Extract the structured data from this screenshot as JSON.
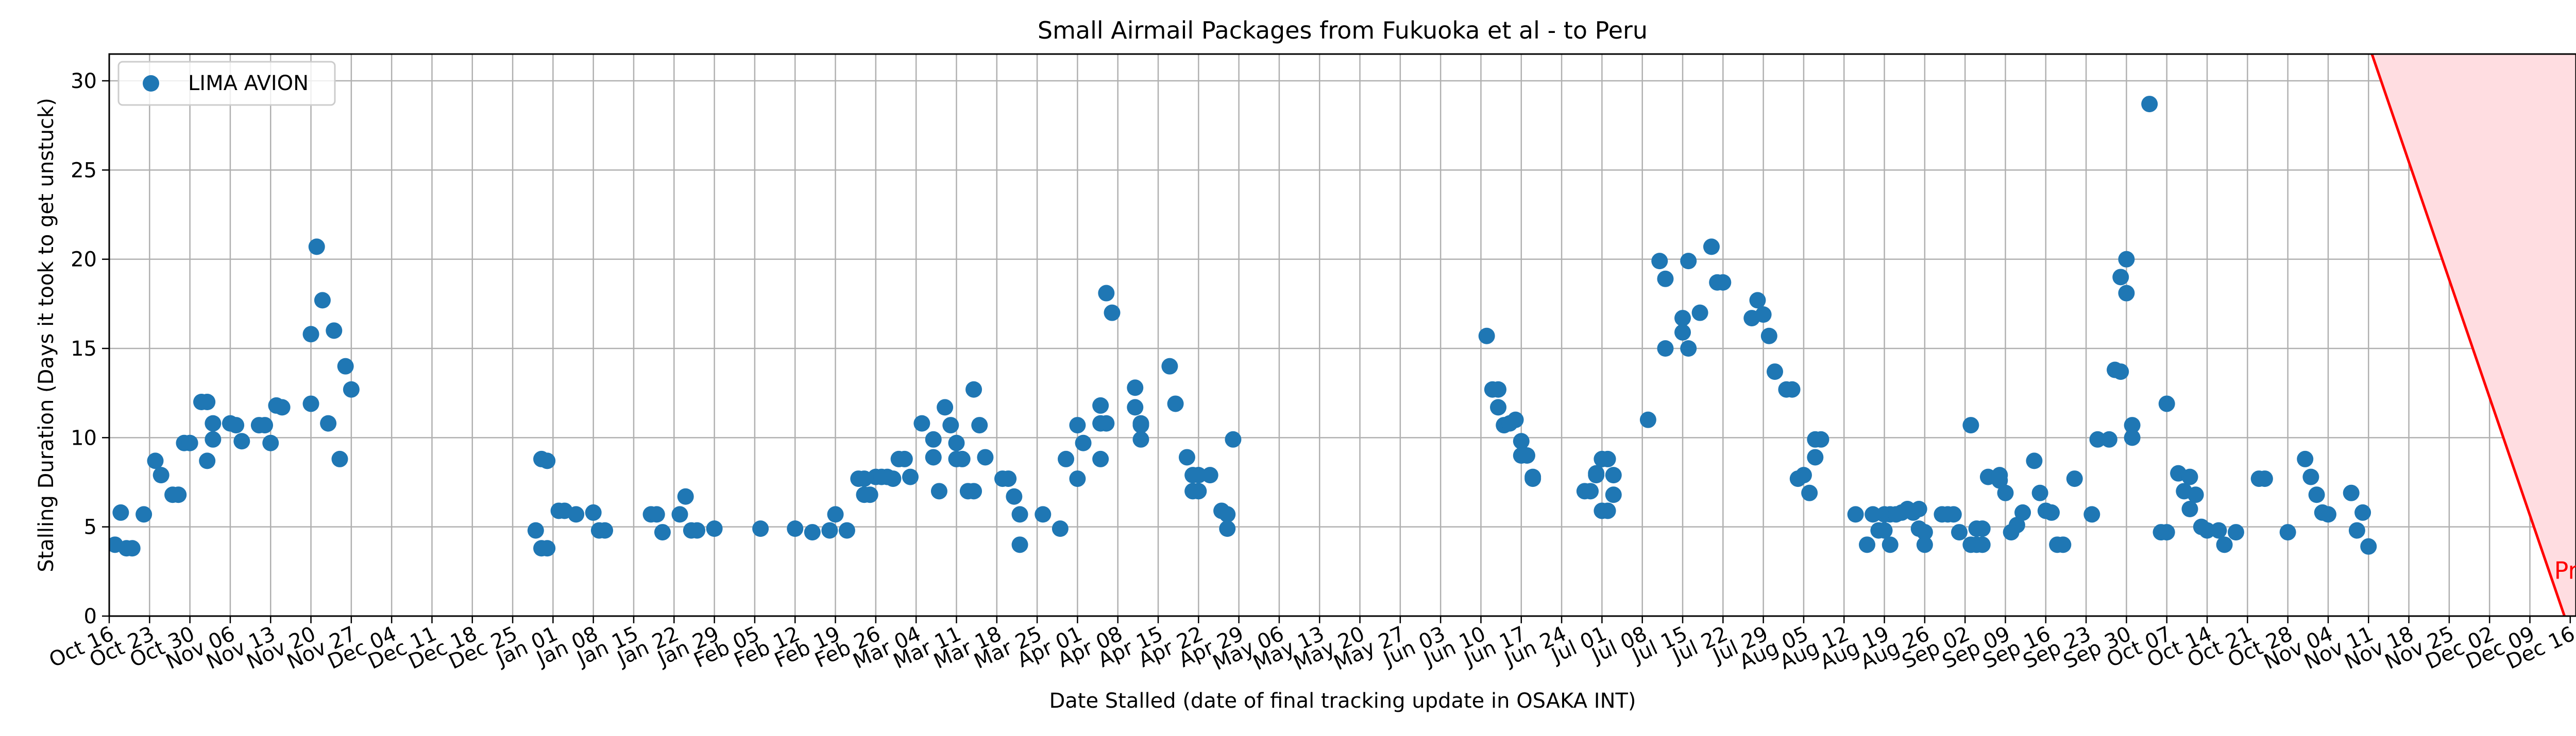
{
  "chart_data": {
    "type": "scatter",
    "title": "Small Airmail Packages from Fukuoka et al - to Peru",
    "xlabel": "Date Stalled (date of final tracking update in OSAKA INT)",
    "ylabel": "Stalling Duration (Days it took to get unstuck)",
    "x_type": "date",
    "xlim": [
      "2023-10-16",
      "2024-12-17"
    ],
    "ylim": [
      0,
      31.5
    ],
    "x_ticks": [
      "2023-10-16",
      "2023-10-23",
      "2023-10-30",
      "2023-11-06",
      "2023-11-13",
      "2023-11-20",
      "2023-11-27",
      "2023-12-04",
      "2023-12-11",
      "2023-12-18",
      "2023-12-25",
      "2024-01-01",
      "2024-01-08",
      "2024-01-15",
      "2024-01-22",
      "2024-01-29",
      "2024-02-05",
      "2024-02-12",
      "2024-02-19",
      "2024-02-26",
      "2024-03-04",
      "2024-03-11",
      "2024-03-18",
      "2024-03-25",
      "2024-04-01",
      "2024-04-08",
      "2024-04-15",
      "2024-04-22",
      "2024-04-29",
      "2024-05-06",
      "2024-05-13",
      "2024-05-20",
      "2024-05-27",
      "2024-06-03",
      "2024-06-10",
      "2024-06-17",
      "2024-06-24",
      "2024-07-01",
      "2024-07-08",
      "2024-07-15",
      "2024-07-22",
      "2024-07-29",
      "2024-08-05",
      "2024-08-12",
      "2024-08-19",
      "2024-08-26",
      "2024-09-02",
      "2024-09-09",
      "2024-09-16",
      "2024-09-23",
      "2024-09-30",
      "2024-10-07",
      "2024-10-14",
      "2024-10-21",
      "2024-10-28",
      "2024-11-04",
      "2024-11-11",
      "2024-11-18",
      "2024-11-25",
      "2024-12-02",
      "2024-12-09",
      "2024-12-16"
    ],
    "x_tick_labels": [
      "Oct 16",
      "Oct 23",
      "Oct 30",
      "Nov 06",
      "Nov 13",
      "Nov 20",
      "Nov 27",
      "Dec 04",
      "Dec 11",
      "Dec 18",
      "Dec 25",
      "Jan 01",
      "Jan 08",
      "Jan 15",
      "Jan 22",
      "Jan 29",
      "Feb 05",
      "Feb 12",
      "Feb 19",
      "Feb 26",
      "Mar 04",
      "Mar 11",
      "Mar 18",
      "Mar 25",
      "Apr 01",
      "Apr 08",
      "Apr 15",
      "Apr 22",
      "Apr 29",
      "May 06",
      "May 13",
      "May 20",
      "May 27",
      "Jun 03",
      "Jun 10",
      "Jun 17",
      "Jun 24",
      "Jul 01",
      "Jul 08",
      "Jul 15",
      "Jul 22",
      "Jul 29",
      "Aug 05",
      "Aug 12",
      "Aug 19",
      "Aug 26",
      "Sep 02",
      "Sep 09",
      "Sep 16",
      "Sep 23",
      "Sep 30",
      "Oct 07",
      "Oct 14",
      "Oct 21",
      "Oct 28",
      "Nov 04",
      "Nov 11",
      "Nov 18",
      "Nov 25",
      "Dec 02",
      "Dec 09",
      "Dec 16"
    ],
    "y_ticks": [
      0,
      5,
      10,
      15,
      20,
      25,
      30
    ],
    "grid": true,
    "legend_position": "top-left",
    "series": [
      {
        "name": "LIMA AVION",
        "color": "#1f77b4",
        "points": [
          [
            "2023-10-17",
            4
          ],
          [
            "2023-10-18",
            5.8
          ],
          [
            "2023-10-19",
            3.8
          ],
          [
            "2023-10-20",
            3.8
          ],
          [
            "2023-10-22",
            5.7
          ],
          [
            "2023-10-24",
            8.7
          ],
          [
            "2023-10-25",
            7.9
          ],
          [
            "2023-10-27",
            6.8
          ],
          [
            "2023-10-28",
            6.8
          ],
          [
            "2023-10-29",
            9.7
          ],
          [
            "2023-10-30",
            9.7
          ],
          [
            "2023-11-01",
            12
          ],
          [
            "2023-11-02",
            12
          ],
          [
            "2023-11-02",
            8.7
          ],
          [
            "2023-11-03",
            9.9
          ],
          [
            "2023-11-03",
            10.8
          ],
          [
            "2023-11-06",
            10.8
          ],
          [
            "2023-11-07",
            10.7
          ],
          [
            "2023-11-08",
            9.8
          ],
          [
            "2023-11-11",
            10.7
          ],
          [
            "2023-11-12",
            10.7
          ],
          [
            "2023-11-13",
            9.7
          ],
          [
            "2023-11-14",
            11.8
          ],
          [
            "2023-11-15",
            11.7
          ],
          [
            "2023-11-20",
            11.9
          ],
          [
            "2023-11-20",
            15.8
          ],
          [
            "2023-11-21",
            20.7
          ],
          [
            "2023-11-22",
            17.7
          ],
          [
            "2023-11-23",
            10.8
          ],
          [
            "2023-11-24",
            16
          ],
          [
            "2023-11-25",
            8.8
          ],
          [
            "2023-11-26",
            14
          ],
          [
            "2023-11-27",
            12.7
          ],
          [
            "2023-12-29",
            4.8
          ],
          [
            "2023-12-30",
            8.8
          ],
          [
            "2023-12-30",
            3.8
          ],
          [
            "2023-12-31",
            8.7
          ],
          [
            "2023-12-31",
            3.8
          ],
          [
            "2024-01-02",
            5.9
          ],
          [
            "2024-01-03",
            5.9
          ],
          [
            "2024-01-05",
            5.7
          ],
          [
            "2024-01-08",
            5.8
          ],
          [
            "2024-01-09",
            4.8
          ],
          [
            "2024-01-10",
            4.8
          ],
          [
            "2024-01-18",
            5.7
          ],
          [
            "2024-01-19",
            5.7
          ],
          [
            "2024-01-20",
            4.7
          ],
          [
            "2024-01-23",
            5.7
          ],
          [
            "2024-01-24",
            6.7
          ],
          [
            "2024-01-25",
            4.8
          ],
          [
            "2024-01-26",
            4.8
          ],
          [
            "2024-01-29",
            4.9
          ],
          [
            "2024-02-06",
            4.9
          ],
          [
            "2024-02-12",
            4.9
          ],
          [
            "2024-02-15",
            4.7
          ],
          [
            "2024-02-18",
            4.8
          ],
          [
            "2024-02-19",
            5.7
          ],
          [
            "2024-02-21",
            4.8
          ],
          [
            "2024-02-23",
            7.7
          ],
          [
            "2024-02-24",
            7.7
          ],
          [
            "2024-02-24",
            6.8
          ],
          [
            "2024-02-25",
            6.8
          ],
          [
            "2024-02-26",
            7.8
          ],
          [
            "2024-02-27",
            7.8
          ],
          [
            "2024-02-28",
            7.8
          ],
          [
            "2024-02-29",
            7.7
          ],
          [
            "2024-03-01",
            8.8
          ],
          [
            "2024-03-02",
            8.8
          ],
          [
            "2024-03-03",
            7.8
          ],
          [
            "2024-03-05",
            10.8
          ],
          [
            "2024-03-07",
            9.9
          ],
          [
            "2024-03-07",
            8.9
          ],
          [
            "2024-03-08",
            7
          ],
          [
            "2024-03-09",
            11.7
          ],
          [
            "2024-03-10",
            10.7
          ],
          [
            "2024-03-11",
            9.7
          ],
          [
            "2024-03-11",
            8.8
          ],
          [
            "2024-03-12",
            8.8
          ],
          [
            "2024-03-13",
            7
          ],
          [
            "2024-03-14",
            7
          ],
          [
            "2024-03-14",
            12.7
          ],
          [
            "2024-03-15",
            10.7
          ],
          [
            "2024-03-16",
            8.9
          ],
          [
            "2024-03-19",
            7.7
          ],
          [
            "2024-03-20",
            7.7
          ],
          [
            "2024-03-21",
            6.7
          ],
          [
            "2024-03-22",
            5.7
          ],
          [
            "2024-03-22",
            4
          ],
          [
            "2024-03-26",
            5.7
          ],
          [
            "2024-03-29",
            4.9
          ],
          [
            "2024-03-30",
            8.8
          ],
          [
            "2024-04-01",
            7.7
          ],
          [
            "2024-04-01",
            10.7
          ],
          [
            "2024-04-02",
            9.7
          ],
          [
            "2024-04-05",
            8.8
          ],
          [
            "2024-04-05",
            11.8
          ],
          [
            "2024-04-05",
            10.8
          ],
          [
            "2024-04-06",
            10.8
          ],
          [
            "2024-04-06",
            18.1
          ],
          [
            "2024-04-07",
            17
          ],
          [
            "2024-04-11",
            12.8
          ],
          [
            "2024-04-11",
            11.7
          ],
          [
            "2024-04-12",
            10.8
          ],
          [
            "2024-04-12",
            9.9
          ],
          [
            "2024-04-12",
            10.7
          ],
          [
            "2024-04-17",
            14
          ],
          [
            "2024-04-18",
            11.9
          ],
          [
            "2024-04-20",
            8.9
          ],
          [
            "2024-04-21",
            7.9
          ],
          [
            "2024-04-21",
            7
          ],
          [
            "2024-04-22",
            7.9
          ],
          [
            "2024-04-22",
            7
          ],
          [
            "2024-04-24",
            7.9
          ],
          [
            "2024-04-26",
            5.9
          ],
          [
            "2024-04-27",
            5.7
          ],
          [
            "2024-04-27",
            4.9
          ],
          [
            "2024-04-28",
            9.9
          ],
          [
            "2024-06-11",
            15.7
          ],
          [
            "2024-06-12",
            12.7
          ],
          [
            "2024-06-13",
            12.7
          ],
          [
            "2024-06-13",
            11.7
          ],
          [
            "2024-06-14",
            10.7
          ],
          [
            "2024-06-15",
            10.8
          ],
          [
            "2024-06-16",
            11
          ],
          [
            "2024-06-17",
            9.8
          ],
          [
            "2024-06-17",
            9
          ],
          [
            "2024-06-18",
            9
          ],
          [
            "2024-06-19",
            7.8
          ],
          [
            "2024-06-19",
            7.7
          ],
          [
            "2024-06-28",
            7
          ],
          [
            "2024-06-29",
            7
          ],
          [
            "2024-06-30",
            8
          ],
          [
            "2024-06-30",
            7.9
          ],
          [
            "2024-07-01",
            5.9
          ],
          [
            "2024-07-01",
            8.8
          ],
          [
            "2024-07-02",
            8.8
          ],
          [
            "2024-07-02",
            5.9
          ],
          [
            "2024-07-03",
            7.9
          ],
          [
            "2024-07-03",
            6.8
          ],
          [
            "2024-07-09",
            11
          ],
          [
            "2024-07-11",
            19.9
          ],
          [
            "2024-07-12",
            18.9
          ],
          [
            "2024-07-12",
            15
          ],
          [
            "2024-07-15",
            16.7
          ],
          [
            "2024-07-15",
            15.9
          ],
          [
            "2024-07-16",
            19.9
          ],
          [
            "2024-07-16",
            15
          ],
          [
            "2024-07-18",
            17
          ],
          [
            "2024-07-20",
            20.7
          ],
          [
            "2024-07-21",
            18.7
          ],
          [
            "2024-07-22",
            18.7
          ],
          [
            "2024-07-27",
            16.7
          ],
          [
            "2024-07-28",
            17.7
          ],
          [
            "2024-07-29",
            16.9
          ],
          [
            "2024-07-30",
            15.7
          ],
          [
            "2024-07-31",
            13.7
          ],
          [
            "2024-08-02",
            12.7
          ],
          [
            "2024-08-03",
            12.7
          ],
          [
            "2024-08-04",
            7.7
          ],
          [
            "2024-08-05",
            7.9
          ],
          [
            "2024-08-06",
            6.9
          ],
          [
            "2024-08-07",
            9.9
          ],
          [
            "2024-08-07",
            8.9
          ],
          [
            "2024-08-08",
            9.9
          ],
          [
            "2024-08-14",
            5.7
          ],
          [
            "2024-08-16",
            4
          ],
          [
            "2024-08-17",
            5.7
          ],
          [
            "2024-08-18",
            4.8
          ],
          [
            "2024-08-19",
            4.8
          ],
          [
            "2024-08-19",
            5.7
          ],
          [
            "2024-08-20",
            5.7
          ],
          [
            "2024-08-20",
            4
          ],
          [
            "2024-08-21",
            5.7
          ],
          [
            "2024-08-22",
            5.8
          ],
          [
            "2024-08-23",
            6
          ],
          [
            "2024-08-24",
            5.8
          ],
          [
            "2024-08-25",
            6
          ],
          [
            "2024-08-25",
            4.9
          ],
          [
            "2024-08-26",
            4
          ],
          [
            "2024-08-26",
            4.7
          ],
          [
            "2024-08-29",
            5.7
          ],
          [
            "2024-08-30",
            5.7
          ],
          [
            "2024-08-31",
            5.7
          ],
          [
            "2024-09-01",
            4.7
          ],
          [
            "2024-09-03",
            10.7
          ],
          [
            "2024-09-03",
            4
          ],
          [
            "2024-09-04",
            4.9
          ],
          [
            "2024-09-04",
            4
          ],
          [
            "2024-09-05",
            4.9
          ],
          [
            "2024-09-05",
            4
          ],
          [
            "2024-09-06",
            7.8
          ],
          [
            "2024-09-08",
            7.9
          ],
          [
            "2024-09-08",
            7.6
          ],
          [
            "2024-09-09",
            6.9
          ],
          [
            "2024-09-10",
            4.7
          ],
          [
            "2024-09-11",
            5.1
          ],
          [
            "2024-09-12",
            5.8
          ],
          [
            "2024-09-14",
            8.7
          ],
          [
            "2024-09-15",
            6.9
          ],
          [
            "2024-09-16",
            5.9
          ],
          [
            "2024-09-17",
            5.8
          ],
          [
            "2024-09-18",
            4
          ],
          [
            "2024-09-19",
            4
          ],
          [
            "2024-09-21",
            7.7
          ],
          [
            "2024-09-24",
            5.7
          ],
          [
            "2024-09-25",
            9.9
          ],
          [
            "2024-09-27",
            9.9
          ],
          [
            "2024-09-28",
            13.8
          ],
          [
            "2024-09-29",
            13.7
          ],
          [
            "2024-09-29",
            19
          ],
          [
            "2024-09-30",
            20
          ],
          [
            "2024-09-30",
            18.1
          ],
          [
            "2024-10-01",
            10
          ],
          [
            "2024-10-01",
            10.7
          ],
          [
            "2024-10-04",
            28.7
          ],
          [
            "2024-10-06",
            4.7
          ],
          [
            "2024-10-07",
            4.7
          ],
          [
            "2024-10-07",
            11.9
          ],
          [
            "2024-10-09",
            8
          ],
          [
            "2024-10-10",
            7
          ],
          [
            "2024-10-11",
            6
          ],
          [
            "2024-10-11",
            7.8
          ],
          [
            "2024-10-12",
            6.8
          ],
          [
            "2024-10-13",
            5
          ],
          [
            "2024-10-14",
            4.8
          ],
          [
            "2024-10-16",
            4.8
          ],
          [
            "2024-10-17",
            4
          ],
          [
            "2024-10-19",
            4.7
          ],
          [
            "2024-10-23",
            7.7
          ],
          [
            "2024-10-24",
            7.7
          ],
          [
            "2024-10-28",
            4.7
          ],
          [
            "2024-10-31",
            8.8
          ],
          [
            "2024-11-01",
            7.8
          ],
          [
            "2024-11-02",
            6.8
          ],
          [
            "2024-11-03",
            5.8
          ],
          [
            "2024-11-04",
            5.7
          ],
          [
            "2024-11-08",
            6.9
          ],
          [
            "2024-11-09",
            4.8
          ],
          [
            "2024-11-10",
            5.8
          ],
          [
            "2024-11-11",
            3.9
          ]
        ]
      }
    ],
    "present_marker": {
      "label": "Present",
      "color": "#ff0000",
      "fill": "#ffdde1",
      "line": [
        [
          "2024-11-10",
          33
        ],
        [
          "2024-12-15",
          0
        ]
      ]
    }
  }
}
